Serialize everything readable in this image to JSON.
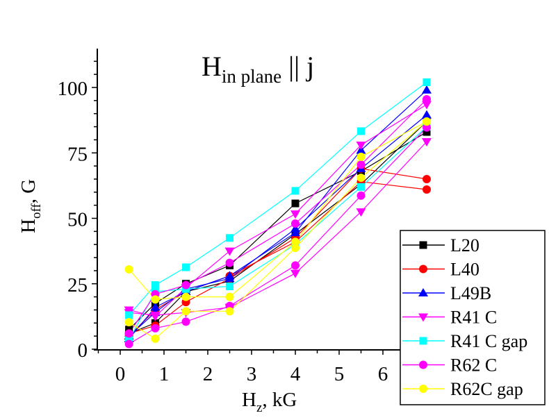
{
  "chart_data": {
    "type": "line",
    "title": {
      "main": "H",
      "sub": "in plane",
      "tail": " || j"
    },
    "xlabel": {
      "main": "H",
      "sub": "z",
      "tail": ", kG"
    },
    "ylabel": {
      "main": "H",
      "sub": "off",
      "tail": ", G"
    },
    "xlim": [
      -0.5,
      6.5
    ],
    "ylim": [
      0,
      115
    ],
    "xticks": [
      "0",
      "1",
      "2",
      "3",
      "4",
      "5",
      "6"
    ],
    "yticks": [
      "0",
      "25",
      "50",
      "75",
      "100"
    ],
    "grid": false,
    "legend_position": "bottom-right",
    "series": [
      {
        "name": "L20",
        "color": "#000000",
        "marker": "square",
        "runs": [
          [
            [
              0.2,
              7.5
            ],
            [
              0.8,
              17.5
            ],
            [
              1.5,
              25
            ],
            [
              2.5,
              32
            ],
            [
              4,
              55.7
            ],
            [
              5.5,
              68
            ],
            [
              7,
              83
            ]
          ],
          [
            [
              0.2,
              6
            ],
            [
              0.8,
              10
            ],
            [
              1.5,
              22
            ],
            [
              2.5,
              26
            ],
            [
              4,
              44
            ],
            [
              5.5,
              63
            ],
            [
              7,
              87
            ]
          ]
        ]
      },
      {
        "name": "L40",
        "color": "#ff0000",
        "marker": "circle",
        "runs": [
          [
            [
              0.2,
              6
            ],
            [
              0.8,
              9
            ],
            [
              1.5,
              18
            ],
            [
              2.5,
              27
            ],
            [
              4,
              42.5
            ],
            [
              5.5,
              69
            ],
            [
              7,
              65
            ]
          ],
          [
            [
              0.2,
              5
            ],
            [
              0.8,
              15
            ],
            [
              1.5,
              22
            ],
            [
              2.5,
              28
            ],
            [
              4,
              41
            ],
            [
              5.5,
              64
            ],
            [
              7,
              61
            ]
          ]
        ]
      },
      {
        "name": "L49B",
        "color": "#0000ff",
        "marker": "triangle-up",
        "runs": [
          [
            [
              0.2,
              4
            ],
            [
              0.8,
              16
            ],
            [
              1.5,
              22
            ],
            [
              2.5,
              28
            ],
            [
              4,
              44.5
            ],
            [
              5.5,
              76
            ],
            [
              7,
              99
            ]
          ],
          [
            [
              0.2,
              5
            ],
            [
              0.8,
              14
            ],
            [
              1.5,
              23
            ],
            [
              2.5,
              27
            ],
            [
              4,
              46
            ],
            [
              5.5,
              69
            ],
            [
              7,
              89.5
            ]
          ]
        ]
      },
      {
        "name": "R41 C",
        "color": "#ff00ff",
        "marker": "triangle-down",
        "runs": [
          [
            [
              0.2,
              15
            ],
            [
              0.8,
              12.5
            ],
            [
              1.5,
              23.5
            ],
            [
              2.5,
              37.5
            ],
            [
              4,
              51.7
            ],
            [
              5.5,
              78
            ],
            [
              7,
              93.5
            ]
          ],
          [
            [
              0.2,
              14
            ],
            [
              0.8,
              13
            ],
            [
              1.5,
              14
            ],
            [
              2.5,
              16
            ],
            [
              4,
              29
            ],
            [
              5.5,
              52.5
            ],
            [
              7,
              79.3
            ]
          ]
        ]
      },
      {
        "name": "R41 C gap",
        "color": "#00ffff",
        "marker": "square",
        "runs": [
          [
            [
              0.2,
              13
            ],
            [
              0.8,
              24.5
            ],
            [
              1.5,
              31.3
            ],
            [
              2.5,
              42.5
            ],
            [
              4,
              60.5
            ],
            [
              5.5,
              83.3
            ],
            [
              7,
              102
            ]
          ],
          [
            [
              0.2,
              3.5
            ],
            [
              0.8,
              22
            ],
            [
              1.5,
              23
            ],
            [
              2.5,
              24
            ],
            [
              4,
              40
            ],
            [
              5.5,
              62
            ],
            [
              7,
              85
            ]
          ]
        ]
      },
      {
        "name": "R62 C",
        "color": "#ff00ff",
        "marker": "circle",
        "runs": [
          [
            [
              0.2,
              6
            ],
            [
              0.8,
              21
            ],
            [
              1.5,
              24.5
            ],
            [
              2.5,
              33
            ],
            [
              4,
              48
            ],
            [
              5.5,
              70.5
            ],
            [
              7,
              95.5
            ]
          ],
          [
            [
              0.2,
              2
            ],
            [
              0.8,
              8
            ],
            [
              1.5,
              10.5
            ],
            [
              2.5,
              16.5
            ],
            [
              4,
              32
            ],
            [
              5.5,
              58.7
            ],
            [
              7,
              84.7
            ]
          ]
        ]
      },
      {
        "name": "R62C gap",
        "color": "#ffff00",
        "marker": "circle",
        "runs": [
          [
            [
              0.2,
              30.5
            ],
            [
              0.8,
              19
            ],
            [
              1.5,
              20
            ],
            [
              2.5,
              20
            ],
            [
              4,
              41
            ],
            [
              5.5,
              73.5
            ],
            [
              7,
              87
            ]
          ],
          [
            [
              0.2,
              10.3
            ],
            [
              0.8,
              4
            ],
            [
              1.5,
              14.5
            ],
            [
              2.5,
              14.5
            ],
            [
              4,
              38.7
            ],
            [
              5.5,
              65.5
            ],
            [
              7,
              87
            ]
          ]
        ]
      }
    ]
  }
}
